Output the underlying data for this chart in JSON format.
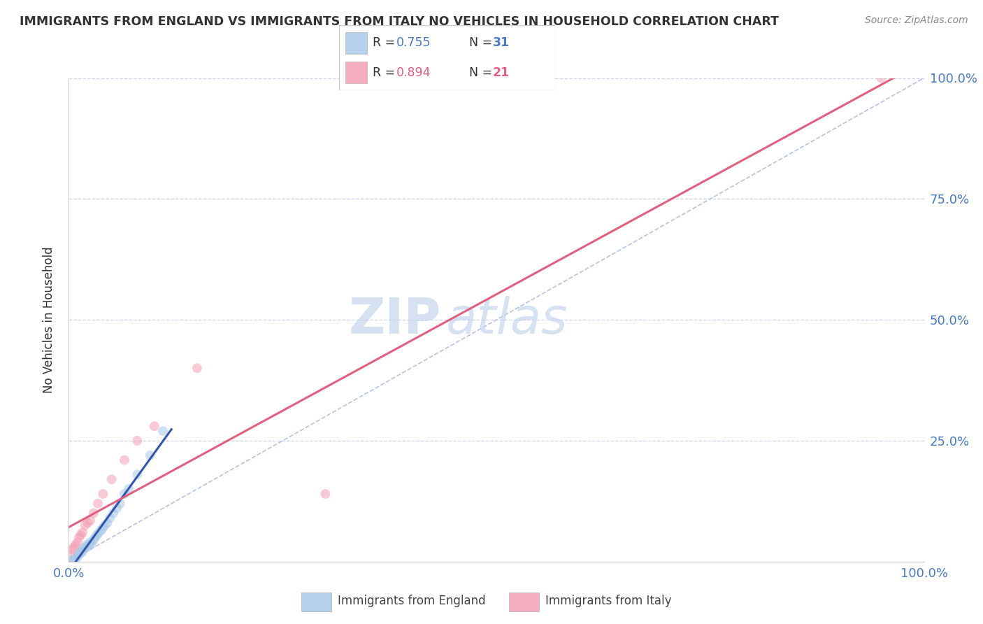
{
  "title": "IMMIGRANTS FROM ENGLAND VS IMMIGRANTS FROM ITALY NO VEHICLES IN HOUSEHOLD CORRELATION CHART",
  "source": "Source: ZipAtlas.com",
  "ylabel": "No Vehicles in Household",
  "xlim": [
    0,
    100
  ],
  "ylim": [
    0,
    100
  ],
  "england_color": "#a8c8e8",
  "italy_color": "#f4a0b5",
  "england_line_color": "#3355aa",
  "italy_line_color": "#e06080",
  "diagonal_color": "#b0bcd8",
  "watermark_zip": "ZIP",
  "watermark_atlas": "atlas",
  "legend_england_R": "0.755",
  "legend_england_N": "31",
  "legend_italy_R": "0.894",
  "legend_italy_N": "21",
  "england_x": [
    0.3,
    0.5,
    0.8,
    1.0,
    1.2,
    1.3,
    1.5,
    1.6,
    1.8,
    2.0,
    2.1,
    2.3,
    2.5,
    2.7,
    2.9,
    3.1,
    3.3,
    3.5,
    3.8,
    4.0,
    4.2,
    4.5,
    4.8,
    5.2,
    5.6,
    6.0,
    6.5,
    7.0,
    8.0,
    9.5,
    11.0
  ],
  "england_y": [
    0.2,
    0.4,
    0.6,
    1.0,
    1.5,
    1.8,
    2.2,
    2.0,
    2.8,
    3.0,
    3.5,
    3.2,
    4.0,
    3.8,
    4.5,
    5.0,
    5.5,
    6.0,
    6.5,
    7.0,
    7.5,
    8.0,
    9.0,
    10.0,
    11.0,
    12.0,
    14.0,
    15.0,
    18.0,
    22.0,
    27.0
  ],
  "italy_x": [
    0.2,
    0.4,
    0.6,
    0.8,
    1.0,
    1.2,
    1.4,
    1.6,
    1.9,
    2.2,
    2.5,
    2.9,
    3.4,
    4.0,
    5.0,
    6.5,
    8.0,
    10.0,
    15.0,
    30.0,
    95.0
  ],
  "italy_y": [
    1.5,
    2.5,
    3.0,
    3.5,
    4.0,
    5.0,
    5.5,
    6.0,
    7.5,
    8.0,
    8.5,
    10.0,
    12.0,
    14.0,
    17.0,
    21.0,
    25.0,
    28.0,
    40.0,
    14.0,
    100.0
  ],
  "background_color": "#ffffff",
  "grid_color": "#c8d4e8",
  "title_color": "#333333",
  "tick_color": "#4a7abf",
  "marker_size": 100,
  "england_reg_xmax": 12.0,
  "italy_reg_xmax": 100.0
}
